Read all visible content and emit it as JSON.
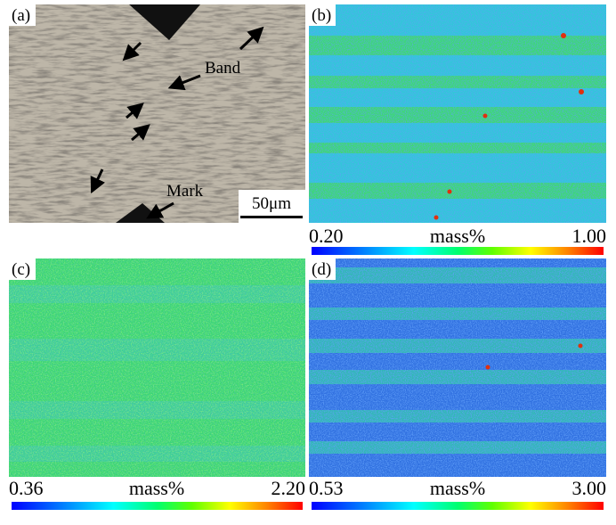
{
  "panels": [
    {
      "label": "(a)",
      "annotations": [
        "Band",
        "Mark"
      ],
      "scale_bar": "50μm"
    },
    {
      "label": "(b)",
      "min": "0.20",
      "unit": "mass%",
      "max": "1.00"
    },
    {
      "label": "(c)",
      "min": "0.36",
      "unit": "mass%",
      "max": "2.20"
    },
    {
      "label": "(d)",
      "min": "0.53",
      "unit": "mass%",
      "max": "3.00"
    }
  ]
}
